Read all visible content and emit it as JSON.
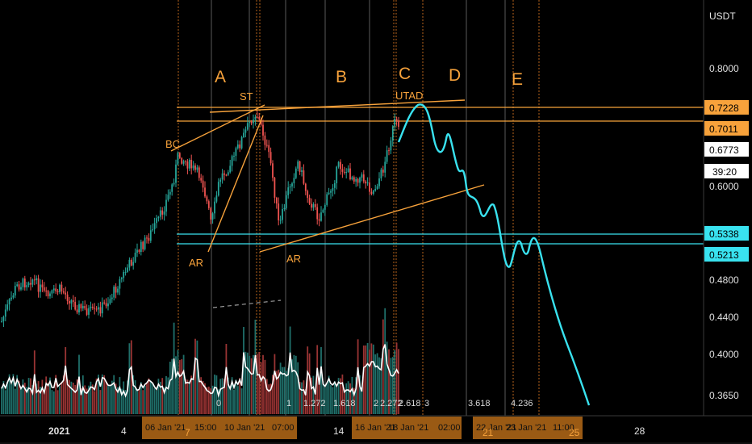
{
  "chart_data": {
    "type": "candlestick",
    "symbol_unit": "USDT",
    "price_axis_ticks": [
      "0.8000",
      "0.6000",
      "0.4800",
      "0.4400",
      "0.4000",
      "0.3650"
    ],
    "price_tags": [
      {
        "value": "0.7228",
        "kind": "orange"
      },
      {
        "value": "0.7011",
        "kind": "orange"
      },
      {
        "value": "0.6773",
        "kind": "white"
      },
      {
        "value": "39:20",
        "kind": "white"
      },
      {
        "value": "0.5338",
        "kind": "cyan"
      },
      {
        "value": "0.5213",
        "kind": "cyan"
      }
    ],
    "horizontal_levels": [
      {
        "value": 0.7228,
        "color": "#f7a23b"
      },
      {
        "value": 0.7011,
        "color": "#f7a23b"
      },
      {
        "value": 0.5338,
        "color": "#39e2ef"
      },
      {
        "value": 0.5213,
        "color": "#39e2ef"
      }
    ],
    "time_axis_labels": [
      "2021",
      "4",
      "7",
      "14",
      "21",
      "25",
      "28"
    ],
    "time_axis_tags": [
      "06 Jan '21",
      "15:00",
      "10 Jan '21",
      "07:00",
      "16 Jan '21",
      "18 Jan '21",
      "02:00",
      "22 Jan '21",
      "23 Jan '21",
      "11:00"
    ],
    "phase_labels": [
      "A",
      "B",
      "C",
      "D",
      "E"
    ],
    "wyckoff_labels": [
      "BC",
      "ST",
      "AR",
      "AR",
      "UTAD"
    ],
    "fib_labels": [
      "0",
      "1",
      "1.272",
      "1.618",
      "2",
      "2.272",
      "2.618",
      "3",
      "3.618",
      "4.236"
    ],
    "projection": "cyan curve projected from the UTAD high through 0.5338 / 0.5213 supports toward 0.3650",
    "accent_colors": {
      "orange": "#f7a23b",
      "cyan": "#39e2ef",
      "bull": "#26a69a",
      "bear": "#ef5350",
      "background": "#000000"
    }
  }
}
